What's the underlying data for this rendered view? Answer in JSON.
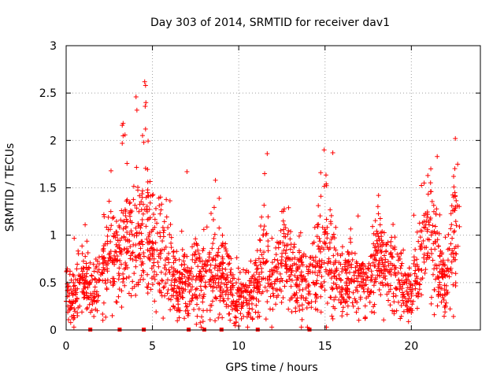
{
  "chart_data": {
    "type": "scatter",
    "title": "Day 303 of 2014, SRMTID for receiver dav1",
    "xlabel": "GPS time / hours",
    "ylabel": "SRMTID / TECUs",
    "xlim": [
      0,
      24
    ],
    "ylim": [
      0,
      3
    ],
    "xticks": [
      0,
      5,
      10,
      15,
      20
    ],
    "xtick_labels": [
      "0",
      "5",
      "10",
      "15",
      "20"
    ],
    "yticks": [
      0,
      0.5,
      1,
      1.5,
      2,
      2.5,
      3
    ],
    "ytick_labels": [
      "0",
      "0.5",
      "1",
      "1.5",
      "2",
      "2.5",
      "3"
    ],
    "grid": true,
    "marker": "+",
    "series_color": "#ff0000",
    "activity_profile": [
      [
        0.0,
        0.4
      ],
      [
        0.5,
        0.35
      ],
      [
        1.0,
        0.55
      ],
      [
        1.5,
        0.38
      ],
      [
        2.0,
        0.5
      ],
      [
        2.5,
        0.85
      ],
      [
        3.0,
        0.7
      ],
      [
        3.5,
        1.05
      ],
      [
        4.0,
        0.85
      ],
      [
        4.5,
        1.15
      ],
      [
        5.0,
        0.9
      ],
      [
        5.5,
        0.75
      ],
      [
        6.0,
        0.6
      ],
      [
        6.5,
        0.45
      ],
      [
        7.0,
        0.55
      ],
      [
        7.5,
        0.6
      ],
      [
        8.0,
        0.5
      ],
      [
        8.5,
        0.7
      ],
      [
        9.0,
        0.65
      ],
      [
        9.5,
        0.45
      ],
      [
        10.0,
        0.35
      ],
      [
        10.5,
        0.4
      ],
      [
        11.0,
        0.45
      ],
      [
        11.5,
        0.75
      ],
      [
        12.0,
        0.5
      ],
      [
        12.5,
        0.75
      ],
      [
        13.0,
        0.6
      ],
      [
        13.5,
        0.55
      ],
      [
        14.0,
        0.45
      ],
      [
        14.5,
        0.65
      ],
      [
        15.0,
        0.9
      ],
      [
        15.5,
        0.7
      ],
      [
        16.0,
        0.5
      ],
      [
        16.5,
        0.6
      ],
      [
        17.0,
        0.45
      ],
      [
        17.5,
        0.5
      ],
      [
        18.0,
        0.75
      ],
      [
        18.5,
        0.65
      ],
      [
        19.0,
        0.6
      ],
      [
        19.5,
        0.45
      ],
      [
        20.0,
        0.4
      ],
      [
        20.5,
        0.7
      ],
      [
        21.0,
        1.1
      ],
      [
        21.5,
        0.75
      ],
      [
        22.0,
        0.4
      ],
      [
        22.5,
        1.05
      ],
      [
        22.8,
        0.9
      ]
    ],
    "points": [
      [
        4.55,
        2.62
      ],
      [
        4.6,
        2.58
      ],
      [
        4.05,
        2.46
      ],
      [
        4.62,
        2.4
      ],
      [
        4.1,
        2.32
      ],
      [
        4.58,
        2.36
      ],
      [
        3.3,
        2.18
      ],
      [
        3.25,
        2.16
      ],
      [
        4.6,
        2.12
      ],
      [
        3.3,
        2.05
      ],
      [
        22.55,
        2.02
      ],
      [
        4.5,
        1.98
      ],
      [
        3.25,
        1.97
      ],
      [
        14.95,
        1.9
      ],
      [
        11.65,
        1.86
      ],
      [
        15.45,
        1.87
      ],
      [
        21.5,
        1.83
      ],
      [
        7.0,
        1.67
      ],
      [
        11.5,
        1.65
      ],
      [
        14.75,
        1.66
      ],
      [
        2.6,
        1.68
      ],
      [
        8.65,
        1.58
      ],
      [
        22.45,
        1.62
      ],
      [
        18.1,
        1.42
      ]
    ],
    "zero_points": [
      1.4,
      3.1,
      4.5,
      7.1,
      8.0,
      9.0,
      11.1,
      14.1
    ]
  }
}
